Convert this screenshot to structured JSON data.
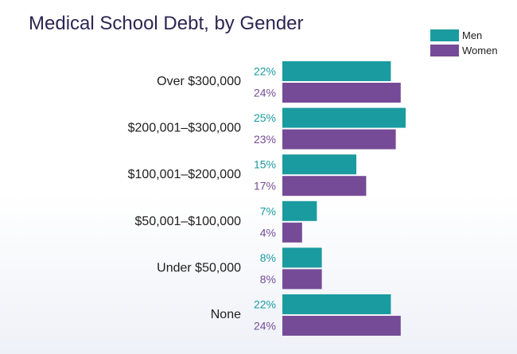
{
  "colors": {
    "men": "#1a9ba0",
    "women": "#754b97"
  },
  "chart_data": {
    "type": "bar",
    "orientation": "horizontal",
    "title": "Medical School Debt, by Gender",
    "categories": [
      "Over $300,000",
      "$200,001–$300,000",
      "$100,001–$200,000",
      "$50,001–$100,000",
      "Under $50,000",
      "None"
    ],
    "series": [
      {
        "name": "Men",
        "values": [
          22,
          25,
          15,
          7,
          8,
          22
        ],
        "labels": [
          "22%",
          "25%",
          "15%",
          "7%",
          "8%",
          "22%"
        ]
      },
      {
        "name": "Women",
        "values": [
          24,
          23,
          17,
          4,
          8,
          24
        ],
        "labels": [
          "24%",
          "23%",
          "17%",
          "4%",
          "8%",
          "24%"
        ]
      }
    ],
    "value_unit": "%",
    "legend_position": "top-right",
    "grid": false
  }
}
